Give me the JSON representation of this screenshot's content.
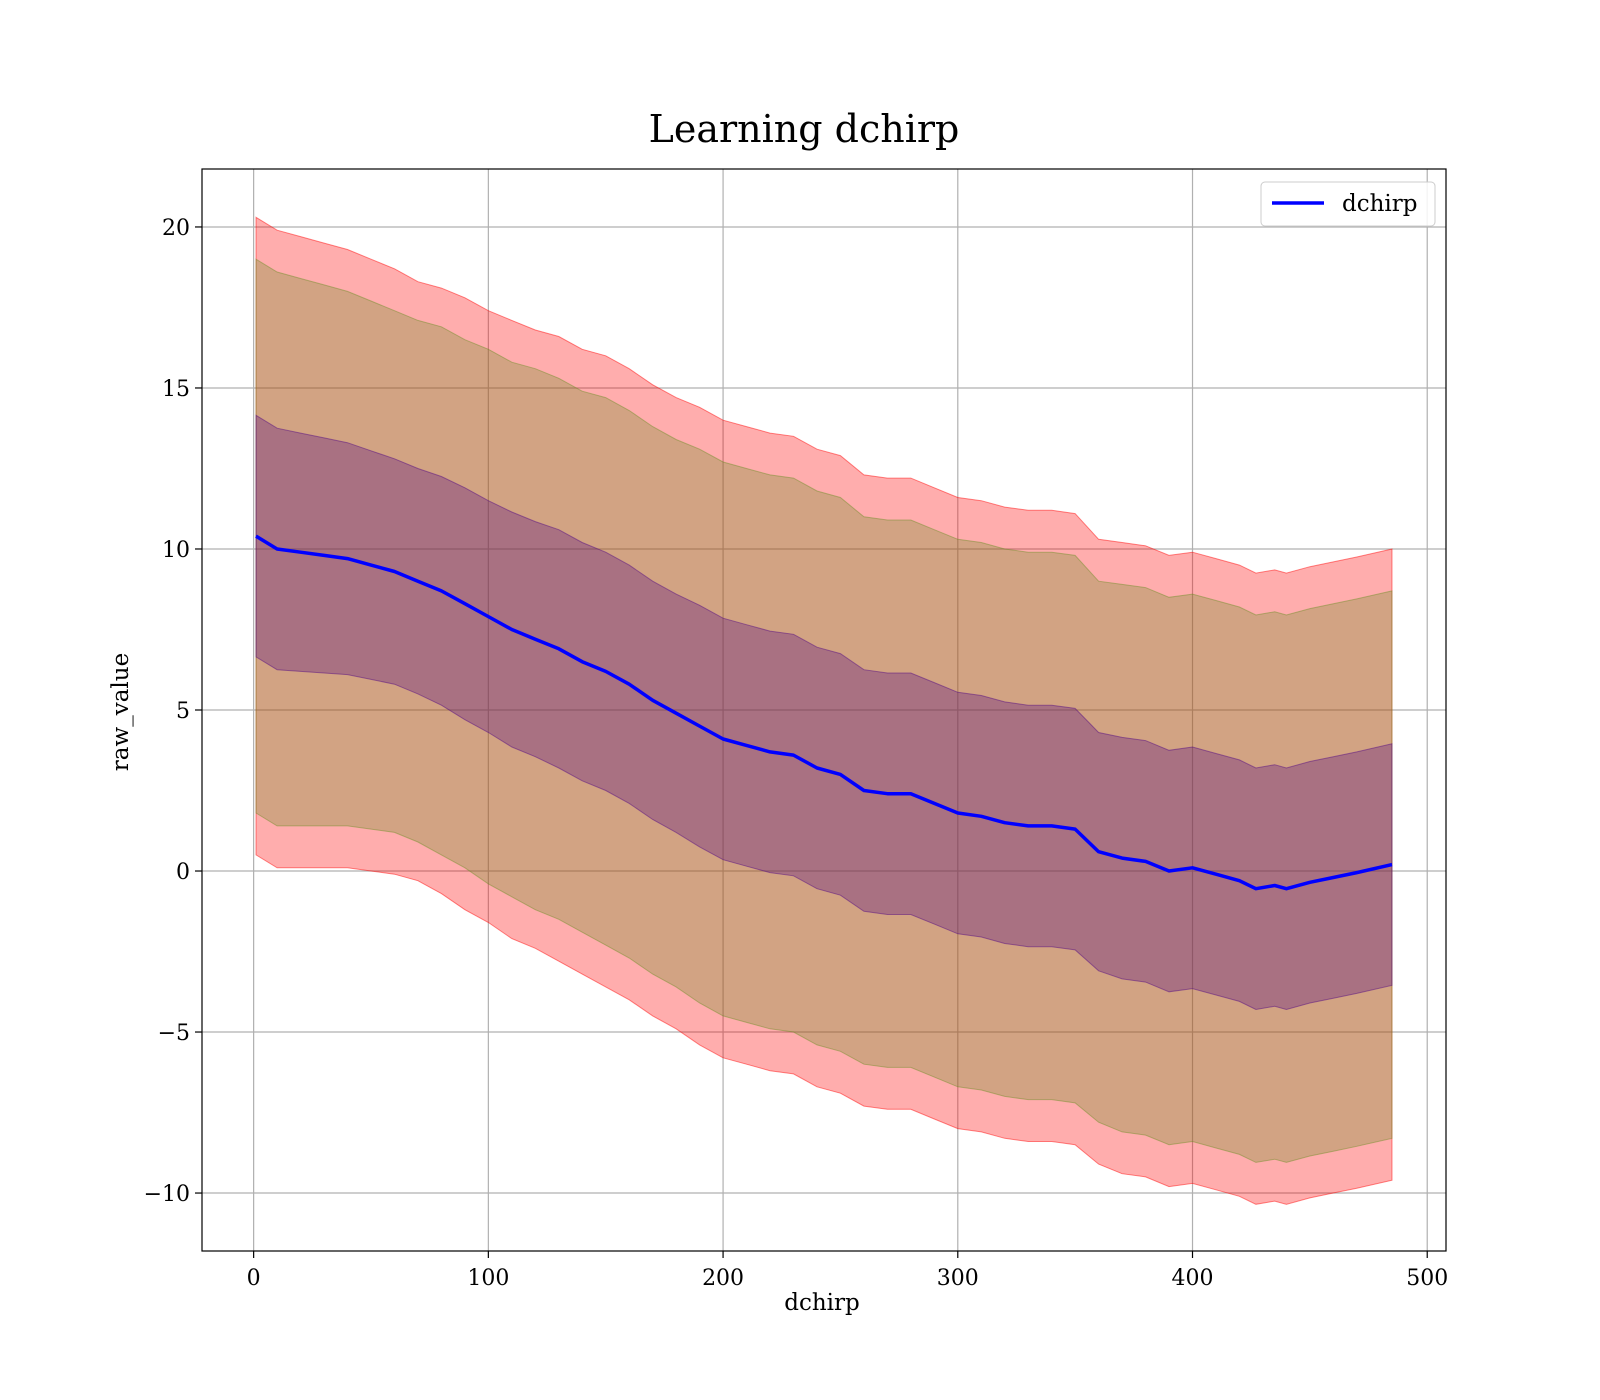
{
  "chart_data": {
    "type": "area",
    "title": "Learning dchirp",
    "xlabel": "dchirp",
    "ylabel": "raw_value",
    "xlim": [
      -22,
      508
    ],
    "ylim": [
      -11.8,
      21.8
    ],
    "xticks": [
      0,
      100,
      200,
      300,
      400,
      500
    ],
    "yticks": [
      -10,
      -5,
      0,
      5,
      10,
      15,
      20
    ],
    "xtick_labels": [
      "0",
      "100",
      "200",
      "300",
      "400",
      "500"
    ],
    "ytick_labels": [
      "−10",
      "−5",
      "0",
      "5",
      "10",
      "15",
      "20"
    ],
    "grid": true,
    "legend": {
      "position": "top-right",
      "entries": [
        "dchirp"
      ]
    },
    "series": [
      {
        "name": "dchirp",
        "color": "#0000ff",
        "x": [
          1,
          10,
          20,
          30,
          40,
          50,
          60,
          70,
          80,
          90,
          100,
          110,
          120,
          130,
          140,
          150,
          160,
          170,
          180,
          190,
          200,
          210,
          220,
          230,
          240,
          250,
          260,
          270,
          280,
          290,
          300,
          310,
          320,
          330,
          340,
          350,
          360,
          370,
          380,
          390,
          400,
          410,
          420,
          427,
          435,
          440,
          450,
          460,
          470,
          485
        ],
        "values": [
          10.4,
          10.0,
          9.9,
          9.8,
          9.7,
          9.5,
          9.3,
          9.0,
          8.7,
          8.3,
          7.9,
          7.5,
          7.2,
          6.9,
          6.5,
          6.2,
          5.8,
          5.3,
          4.9,
          4.5,
          4.1,
          3.9,
          3.7,
          3.6,
          3.2,
          3.0,
          2.5,
          2.4,
          2.4,
          2.1,
          1.8,
          1.7,
          1.5,
          1.4,
          1.4,
          1.3,
          0.6,
          0.4,
          0.3,
          0.0,
          0.1,
          -0.1,
          -0.3,
          -0.55,
          -0.45,
          -0.55,
          -0.35,
          -0.2,
          -0.05,
          0.2
        ]
      }
    ],
    "bands": [
      {
        "color": "#ff0000",
        "opacity": 0.32,
        "half_width": [
          9.9,
          9.9,
          9.8,
          9.7,
          9.6,
          9.5,
          9.4,
          9.3,
          9.4,
          9.5,
          9.5,
          9.6,
          9.6,
          9.7,
          9.7,
          9.8,
          9.8,
          9.8,
          9.8,
          9.9,
          9.9,
          9.9,
          9.9,
          9.9,
          9.9,
          9.9,
          9.8,
          9.8,
          9.8,
          9.8,
          9.8,
          9.8,
          9.8,
          9.8,
          9.8,
          9.8,
          9.7,
          9.8,
          9.8,
          9.8,
          9.8,
          9.8,
          9.8,
          9.8,
          9.8,
          9.8,
          9.8,
          9.8,
          9.8,
          9.8
        ]
      },
      {
        "color": "#6b8e23",
        "opacity": 0.3,
        "half_width": [
          8.6,
          8.6,
          8.5,
          8.4,
          8.3,
          8.2,
          8.1,
          8.1,
          8.2,
          8.2,
          8.3,
          8.3,
          8.4,
          8.4,
          8.4,
          8.5,
          8.5,
          8.5,
          8.5,
          8.6,
          8.6,
          8.6,
          8.6,
          8.6,
          8.6,
          8.6,
          8.5,
          8.5,
          8.5,
          8.5,
          8.5,
          8.5,
          8.5,
          8.5,
          8.5,
          8.5,
          8.4,
          8.5,
          8.5,
          8.5,
          8.5,
          8.5,
          8.5,
          8.5,
          8.5,
          8.5,
          8.5,
          8.5,
          8.5,
          8.5
        ]
      },
      {
        "color": "#4b0082",
        "opacity": 0.3,
        "half_width": [
          3.75,
          3.75,
          3.7,
          3.65,
          3.6,
          3.55,
          3.5,
          3.5,
          3.55,
          3.6,
          3.6,
          3.65,
          3.65,
          3.7,
          3.7,
          3.7,
          3.7,
          3.7,
          3.7,
          3.75,
          3.75,
          3.75,
          3.75,
          3.75,
          3.75,
          3.75,
          3.75,
          3.75,
          3.75,
          3.75,
          3.75,
          3.75,
          3.75,
          3.75,
          3.75,
          3.75,
          3.7,
          3.75,
          3.75,
          3.75,
          3.75,
          3.75,
          3.75,
          3.75,
          3.75,
          3.75,
          3.75,
          3.75,
          3.75,
          3.75
        ]
      }
    ]
  }
}
